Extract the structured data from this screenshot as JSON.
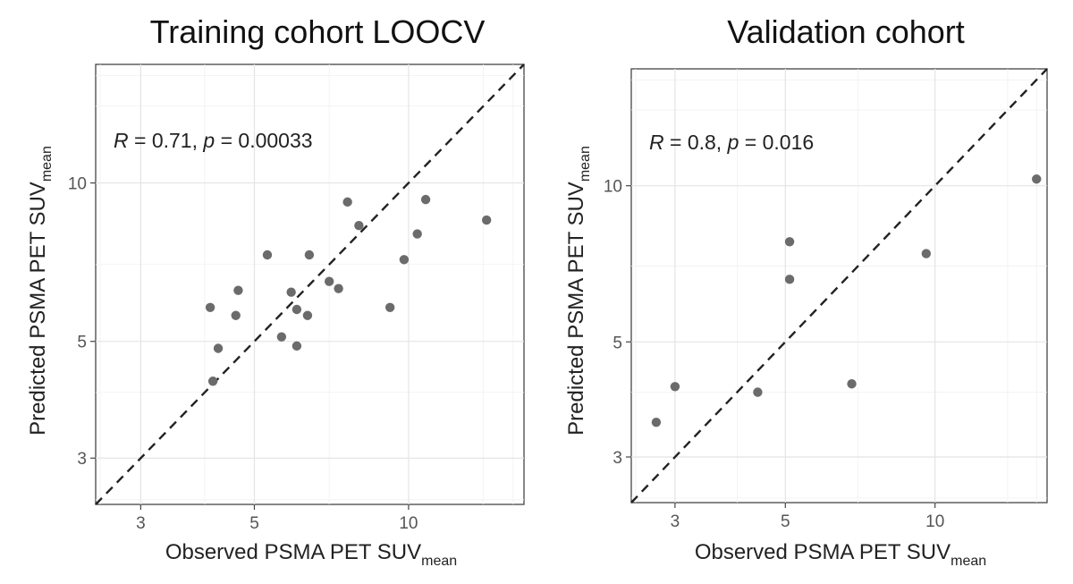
{
  "chart_data": [
    {
      "type": "scatter",
      "title": "Training cohort LOOCV",
      "xlabel": {
        "main": "Observed PSMA PET SUV",
        "subscript": "mean"
      },
      "ylabel": {
        "main": "Predicted PSMA PET SUV",
        "subscript": "mean"
      },
      "scale": "log",
      "xlim": [
        2.45,
        16.8
      ],
      "ylim": [
        2.45,
        16.8
      ],
      "x_ticks": [
        "3",
        "5",
        "10"
      ],
      "y_ticks": [
        "3",
        "5",
        "10"
      ],
      "grid": true,
      "reference_line": "y = x (dashed)",
      "annotation": {
        "r_label": "R",
        "r_value": " = 0.71, ",
        "p_label": "p",
        "p_value": " = 0.00033"
      },
      "points": [
        {
          "x": 4.1,
          "y": 5.8
        },
        {
          "x": 4.15,
          "y": 4.2
        },
        {
          "x": 4.25,
          "y": 4.85
        },
        {
          "x": 4.6,
          "y": 5.6
        },
        {
          "x": 4.65,
          "y": 6.25
        },
        {
          "x": 5.3,
          "y": 7.3
        },
        {
          "x": 5.65,
          "y": 5.1
        },
        {
          "x": 5.9,
          "y": 6.2
        },
        {
          "x": 6.05,
          "y": 4.9
        },
        {
          "x": 6.05,
          "y": 5.75
        },
        {
          "x": 6.35,
          "y": 5.6
        },
        {
          "x": 6.4,
          "y": 7.3
        },
        {
          "x": 7.0,
          "y": 6.5
        },
        {
          "x": 7.3,
          "y": 6.3
        },
        {
          "x": 7.6,
          "y": 9.2
        },
        {
          "x": 8.0,
          "y": 8.3
        },
        {
          "x": 9.2,
          "y": 5.8
        },
        {
          "x": 9.8,
          "y": 7.15
        },
        {
          "x": 10.4,
          "y": 8.0
        },
        {
          "x": 10.8,
          "y": 9.3
        },
        {
          "x": 14.2,
          "y": 8.5
        }
      ]
    },
    {
      "type": "scatter",
      "title": "Validation cohort",
      "xlabel": {
        "main": "Observed PSMA PET SUV",
        "subscript": "mean"
      },
      "ylabel": {
        "main": "Predicted PSMA PET SUV",
        "subscript": "mean"
      },
      "scale": "log",
      "xlim": [
        2.45,
        16.8
      ],
      "ylim": [
        2.45,
        16.8
      ],
      "x_ticks": [
        "3",
        "5",
        "10"
      ],
      "y_ticks": [
        "3",
        "5",
        "10"
      ],
      "grid": true,
      "reference_line": "y = x (dashed)",
      "annotation": {
        "r_label": "R",
        "r_value": " = 0.8, ",
        "p_label": "p",
        "p_value": " = 0.016"
      },
      "points": [
        {
          "x": 2.75,
          "y": 3.5
        },
        {
          "x": 3.0,
          "y": 4.1
        },
        {
          "x": 4.4,
          "y": 4.0
        },
        {
          "x": 5.1,
          "y": 7.8
        },
        {
          "x": 5.1,
          "y": 6.6
        },
        {
          "x": 6.8,
          "y": 4.15
        },
        {
          "x": 9.6,
          "y": 7.4
        },
        {
          "x": 16.0,
          "y": 10.3
        }
      ]
    }
  ]
}
